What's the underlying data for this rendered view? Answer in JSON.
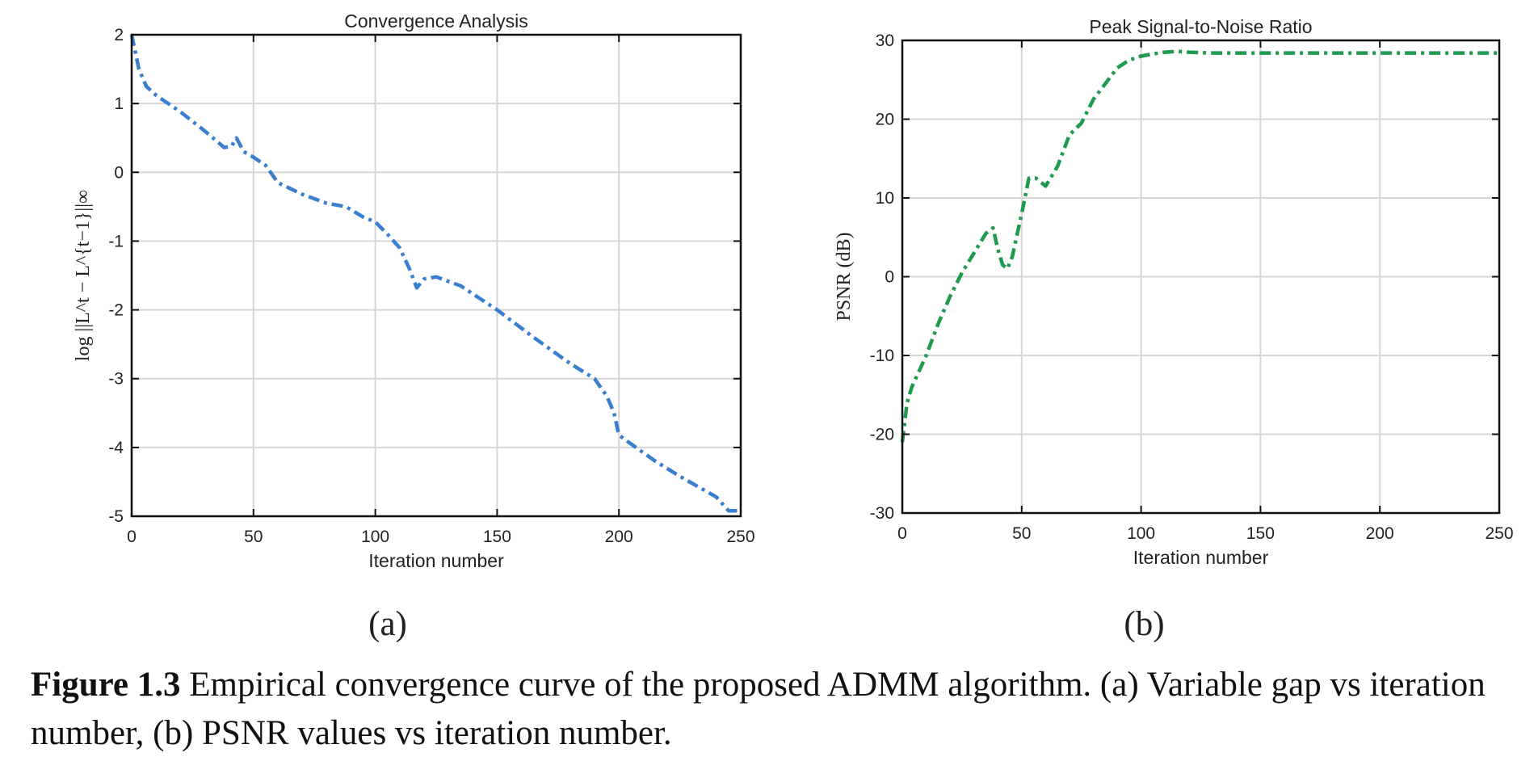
{
  "chart_data": [
    {
      "type": "line",
      "panel_label": "(a)",
      "title": "Convergence Analysis",
      "xlabel": "Iteration number",
      "ylabel": "log ||L^t − L^{t−1}||∞",
      "xlim": [
        0,
        250
      ],
      "ylim": [
        -5,
        2
      ],
      "xticks": [
        0,
        50,
        100,
        150,
        200,
        250
      ],
      "yticks": [
        -5,
        -4,
        -3,
        -2,
        -1,
        0,
        1,
        2
      ],
      "grid": true,
      "line_style": "dash-dot",
      "series": [
        {
          "color": "#3a7fcf",
          "x": [
            0,
            3,
            6,
            10,
            20,
            30,
            38,
            41,
            43,
            46,
            50,
            55,
            60,
            70,
            80,
            88,
            95,
            100,
            105,
            110,
            114,
            117,
            120,
            125,
            135,
            150,
            165,
            180,
            190,
            195,
            198,
            200,
            205,
            215,
            225,
            240,
            245,
            250
          ],
          "y": [
            2.0,
            1.5,
            1.25,
            1.12,
            0.88,
            0.6,
            0.36,
            0.38,
            0.5,
            0.3,
            0.22,
            0.1,
            -0.15,
            -0.32,
            -0.45,
            -0.5,
            -0.65,
            -0.72,
            -0.9,
            -1.1,
            -1.4,
            -1.68,
            -1.55,
            -1.52,
            -1.65,
            -2.0,
            -2.4,
            -2.78,
            -3.0,
            -3.25,
            -3.5,
            -3.82,
            -3.95,
            -4.2,
            -4.42,
            -4.72,
            -4.92,
            -4.92
          ]
        }
      ]
    },
    {
      "type": "line",
      "panel_label": "(b)",
      "title": "Peak Signal-to-Noise Ratio",
      "xlabel": "Iteration number",
      "ylabel": "PSNR (dB)",
      "xlim": [
        0,
        250
      ],
      "ylim": [
        -30,
        30
      ],
      "xticks": [
        0,
        50,
        100,
        150,
        200,
        250
      ],
      "yticks": [
        -30,
        -20,
        -10,
        0,
        10,
        20,
        30
      ],
      "grid": true,
      "line_style": "dash-dot",
      "series": [
        {
          "color": "#1f9a4e",
          "x": [
            0,
            2,
            4,
            7,
            10,
            15,
            20,
            25,
            30,
            35,
            38,
            40,
            42,
            44,
            46,
            50,
            53,
            56,
            60,
            65,
            70,
            75,
            80,
            85,
            90,
            95,
            100,
            105,
            110,
            115,
            120,
            130,
            150,
            200,
            250
          ],
          "y": [
            -21,
            -16,
            -14,
            -12,
            -10,
            -6,
            -2.5,
            0.5,
            3,
            5.5,
            6.2,
            3.5,
            1.5,
            1,
            2.5,
            8,
            12.5,
            12.5,
            11.5,
            14,
            18,
            19.5,
            22.5,
            24.5,
            26.5,
            27.5,
            28,
            28.3,
            28.5,
            28.6,
            28.5,
            28.4,
            28.4,
            28.4,
            28.4
          ]
        }
      ]
    }
  ],
  "caption": {
    "label": "Figure 1.3",
    "text": " Empirical convergence curve of the proposed ADMM algorithm. (a) Variable gap vs iteration number, (b) PSNR values vs iteration number."
  }
}
